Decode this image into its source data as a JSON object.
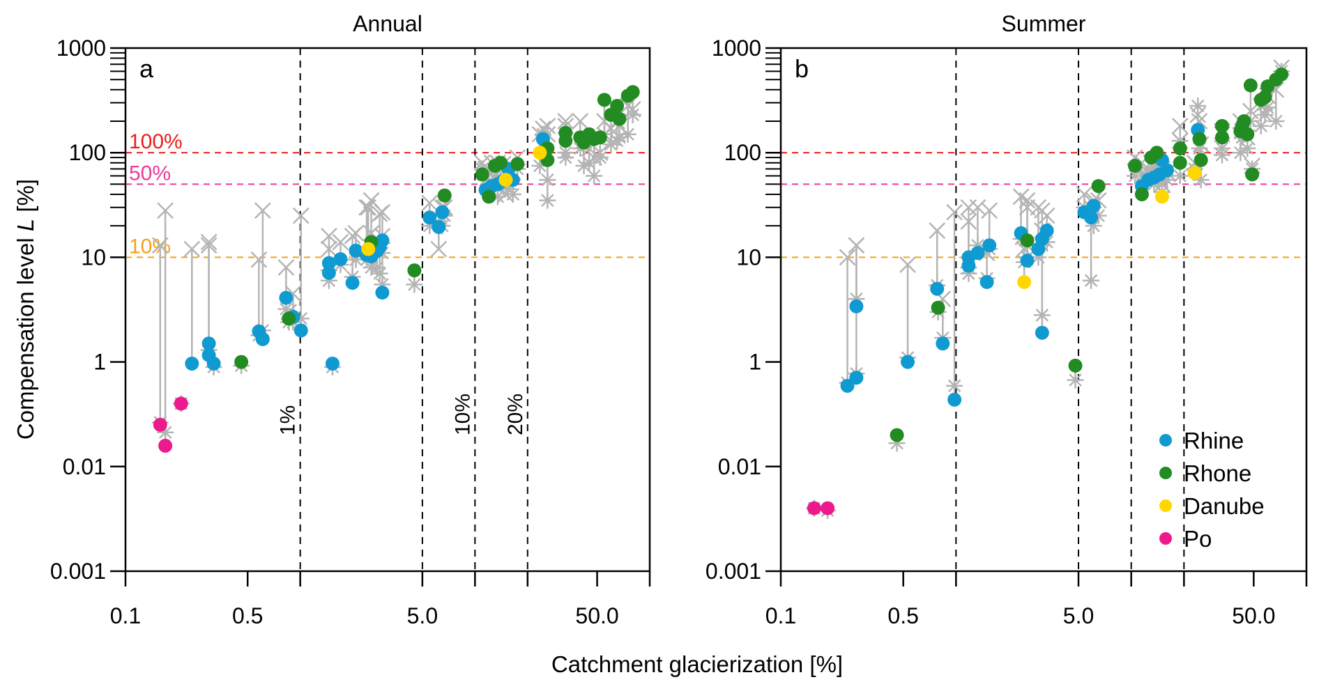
{
  "figure": {
    "xlabel": "Catchment glacierization [%]",
    "ylabel_main": "Compensation level ",
    "ylabel_italic": "L",
    "ylabel_unit": " [%]"
  },
  "chart_data": [
    {
      "type": "scatter",
      "panel_letter": "a",
      "title": "Annual",
      "xlabel": "Catchment glacierization [%]",
      "ylabel": "Compensation level L [%]",
      "xscale": "log",
      "xlim": [
        0.1,
        100
      ],
      "x_ticks": [
        0.1,
        0.5,
        1,
        5,
        10,
        20,
        50,
        100
      ],
      "x_tick_labels": [
        "0.1",
        "0.5",
        "",
        "5.0",
        "",
        "",
        "50.0",
        ""
      ],
      "y_ticks": [
        1000,
        100,
        10,
        1,
        0.01,
        0.001
      ],
      "y_tick_labels": [
        "1000",
        "100",
        "10",
        "1",
        "0.01",
        "0.001"
      ],
      "y_minor_ticks": true,
      "hlines": [
        {
          "value": 100,
          "label": "100%",
          "color": "#ee1c1c"
        },
        {
          "value": 50,
          "label": "50%",
          "color": "#ec3a98"
        },
        {
          "value": 10,
          "label": "10%",
          "color": "#f5a11a"
        }
      ],
      "vlines": [
        {
          "value": 1,
          "label": "1%"
        },
        {
          "value": 5,
          "label": ""
        },
        {
          "value": 10,
          "label": "10%"
        },
        {
          "value": 20,
          "label": "20%"
        }
      ],
      "legend": null,
      "series": [
        {
          "name": "Rhine",
          "color": "#0f9ad2",
          "points": [
            [
              0.24,
              0.93,
              12,
              null
            ],
            [
              0.3,
              1.5,
              13,
              1.3
            ],
            [
              0.3,
              1.16,
              14,
              null
            ],
            [
              0.32,
              0.93,
              null,
              0.8
            ],
            [
              0.58,
              1.96,
              9.5,
              1.8
            ],
            [
              0.61,
              1.65,
              28,
              2.0
            ],
            [
              0.83,
              4.1,
              8,
              3.2
            ],
            [
              0.91,
              2.7,
              4.5,
              2.4
            ],
            [
              1.01,
              2.0,
              25,
              2.6
            ],
            [
              1.53,
              0.93,
              null,
              0.8
            ],
            [
              1.46,
              7.1,
              16,
              6.0
            ],
            [
              1.46,
              8.8,
              12,
              7.5
            ],
            [
              1.7,
              9.6,
              14,
              8.5
            ],
            [
              1.99,
              5.7,
              16,
              6.5
            ],
            [
              2.08,
              11.6,
              17,
              9.5
            ],
            [
              2.4,
              10.5,
              30,
              9.5
            ],
            [
              2.55,
              10.2,
              17,
              8
            ],
            [
              2.75,
              11.5,
              14,
              8
            ],
            [
              2.85,
              12.5,
              26,
              7
            ],
            [
              2.95,
              14.5,
              16,
              11
            ],
            [
              2.95,
              4.6,
              27,
              5.5
            ],
            [
              5.5,
              24,
              33,
              20
            ],
            [
              6.2,
              19.5,
              12,
              21
            ],
            [
              6.5,
              27,
              30,
              20
            ],
            [
              11.5,
              44,
              70,
              55
            ],
            [
              12.5,
              48,
              80,
              52
            ],
            [
              13.5,
              50,
              80,
              38
            ],
            [
              14.5,
              54,
              78,
              50
            ],
            [
              15.5,
              70,
              60,
              45
            ],
            [
              16.5,
              55,
              65,
              40
            ],
            [
              24.5,
              135,
              170,
              150
            ]
          ]
        },
        {
          "name": "Rhone",
          "color": "#228b22",
          "points": [
            [
              0.46,
              1.0,
              null,
              0.85
            ],
            [
              0.86,
              2.6,
              3,
              2.4
            ],
            [
              2.55,
              14,
              35,
              10
            ],
            [
              4.5,
              7.5,
              null,
              5.5
            ],
            [
              6.7,
              39,
              30,
              25
            ],
            [
              11.0,
              62,
              80,
              70
            ],
            [
              12.0,
              38,
              null,
              null
            ],
            [
              13.0,
              75,
              60,
              50
            ],
            [
              14.0,
              80,
              70,
              55
            ],
            [
              17.5,
              78,
              90,
              70
            ],
            [
              26.0,
              110,
              180,
              55
            ],
            [
              26.0,
              85,
              150,
              35
            ],
            [
              33,
              155,
              180,
              90
            ],
            [
              33,
              130,
              200,
              100
            ],
            [
              40,
              140,
              200,
              110
            ],
            [
              42,
              125,
              130,
              75
            ],
            [
              45,
              150,
              110,
              80
            ],
            [
              48,
              135,
              90,
              60
            ],
            [
              52,
              140,
              100,
              90
            ],
            [
              55,
              320,
              200,
              150
            ],
            [
              60,
              230,
              170,
              120
            ],
            [
              65,
              280,
              200,
              130
            ],
            [
              67,
              210,
              180,
              140
            ],
            [
              75,
              350,
              280,
              150
            ],
            [
              80,
              380,
              260,
              230
            ]
          ]
        },
        {
          "name": "Danube",
          "color": "#ffd700",
          "points": [
            [
              2.45,
              12,
              30,
              11
            ],
            [
              15.0,
              55,
              40,
              48
            ],
            [
              23.5,
              100,
              150,
              75
            ]
          ]
        },
        {
          "name": "Po",
          "color": "#ec1a8c",
          "points": [
            [
              0.158,
              0.063,
              13,
              0.07
            ],
            [
              0.169,
              0.025,
              28,
              0.045
            ],
            [
              0.208,
              0.16,
              null,
              0.16
            ]
          ]
        }
      ]
    },
    {
      "type": "scatter",
      "panel_letter": "b",
      "title": "Summer",
      "xlabel": "Catchment glacierization [%]",
      "ylabel": "Compensation level L [%]",
      "xscale": "log",
      "xlim": [
        0.1,
        100
      ],
      "x_ticks": [
        0.1,
        0.5,
        1,
        5,
        10,
        20,
        50,
        100
      ],
      "x_tick_labels": [
        "0.1",
        "0.5",
        "",
        "5.0",
        "",
        "",
        "50.0",
        ""
      ],
      "y_ticks": [
        1000,
        100,
        10,
        1,
        0.01,
        0.001
      ],
      "y_tick_labels": [
        "1000",
        "100",
        "10",
        "1",
        "0.01",
        "0.001"
      ],
      "y_minor_ticks": true,
      "hlines": [
        {
          "value": 100,
          "label": "",
          "color": "#ee1c1c"
        },
        {
          "value": 50,
          "label": "",
          "color": "#ec3a98"
        },
        {
          "value": 10,
          "label": "",
          "color": "#f5a11a"
        }
      ],
      "vlines": [
        {
          "value": 1,
          "label": ""
        },
        {
          "value": 5,
          "label": ""
        },
        {
          "value": 10,
          "label": ""
        },
        {
          "value": 20,
          "label": ""
        }
      ],
      "legend": {
        "placement": "bottom-right",
        "entries": [
          {
            "label": "Rhine",
            "color": "#0f9ad2"
          },
          {
            "label": "Rhone",
            "color": "#228b22"
          },
          {
            "label": "Danube",
            "color": "#ffd700"
          },
          {
            "label": "Po",
            "color": "#ec1a8c"
          }
        ]
      },
      "series": [
        {
          "name": "Rhine",
          "color": "#0f9ad2",
          "points": [
            [
              0.24,
              0.35,
              10,
              0.4
            ],
            [
              0.27,
              0.5,
              13,
              0.6
            ],
            [
              0.27,
              3.4,
              13,
              4.0
            ],
            [
              0.53,
              1.0,
              8.5,
              1.1
            ],
            [
              0.78,
              5.0,
              18,
              5.4
            ],
            [
              0.84,
              1.5,
              4,
              1.7
            ],
            [
              0.98,
              0.19,
              27,
              0.35
            ],
            [
              1.18,
              10,
              30,
              8
            ],
            [
              1.18,
              8.3,
              22,
              7
            ],
            [
              1.33,
              11,
              30,
              13
            ],
            [
              1.55,
              13,
              28,
              12
            ],
            [
              1.5,
              5.8,
              11,
              6.3
            ],
            [
              2.35,
              17,
              38,
              15
            ],
            [
              2.55,
              9.3,
              30,
              10
            ],
            [
              2.95,
              12,
              30,
              10
            ],
            [
              3.1,
              15,
              28,
              13
            ],
            [
              3.3,
              18,
              25,
              14
            ],
            [
              3.1,
              1.9,
              18,
              2.8
            ],
            [
              5.4,
              27,
              40,
              30
            ],
            [
              6.1,
              31,
              35,
              20
            ],
            [
              5.9,
              24,
              30,
              6
            ],
            [
              11.5,
              48,
              80,
              60
            ],
            [
              12.5,
              55,
              70,
              65
            ],
            [
              13.5,
              58,
              75,
              50
            ],
            [
              14.5,
              62,
              60,
              55
            ],
            [
              15.0,
              85,
              70,
              52
            ],
            [
              16.0,
              68,
              65,
              55
            ],
            [
              24.0,
              165,
              230,
              280
            ]
          ]
        },
        {
          "name": "Rhone",
          "color": "#228b22",
          "points": [
            [
              0.46,
              0.04,
              null,
              0.028
            ],
            [
              0.79,
              3.3,
              null,
              3.0
            ],
            [
              2.55,
              14.5,
              35,
              13
            ],
            [
              4.8,
              0.85,
              null,
              0.45
            ],
            [
              6.5,
              48,
              35,
              25
            ],
            [
              10.5,
              75,
              90,
              60
            ],
            [
              11.5,
              40,
              null,
              null
            ],
            [
              13.0,
              90,
              80,
              62
            ],
            [
              14.0,
              100,
              75,
              58
            ],
            [
              19.0,
              110,
              180,
              130
            ],
            [
              19.0,
              80,
              130,
              60
            ],
            [
              24.5,
              135,
              200,
              110
            ],
            [
              25,
              85,
              120,
              55
            ],
            [
              33,
              180,
              150,
              95
            ],
            [
              33,
              140,
              160,
              110
            ],
            [
              42,
              160,
              200,
              100
            ],
            [
              43,
              180,
              160,
              140
            ],
            [
              44,
              200,
              170,
              150
            ],
            [
              46,
              150,
              140,
              110
            ],
            [
              49,
              62,
              75,
              70
            ],
            [
              48,
              440,
              250,
              200
            ],
            [
              55,
              320,
              280,
              180
            ],
            [
              58,
              340,
              300,
              230
            ],
            [
              60,
              430,
              350,
              270
            ],
            [
              67,
              500,
              400,
              200
            ],
            [
              72,
              560,
              650,
              600
            ]
          ]
        },
        {
          "name": "Danube",
          "color": "#ffd700",
          "points": [
            [
              2.45,
              5.8,
              12,
              9
            ],
            [
              15.0,
              38,
              50,
              42
            ],
            [
              23.0,
              64,
              80,
              70
            ]
          ]
        },
        {
          "name": "Po",
          "color": "#ec1a8c",
          "points": [
            [
              0.155,
              0.004,
              null,
              0.004
            ],
            [
              0.185,
              0.004,
              null,
              0.0038
            ]
          ]
        }
      ]
    }
  ]
}
